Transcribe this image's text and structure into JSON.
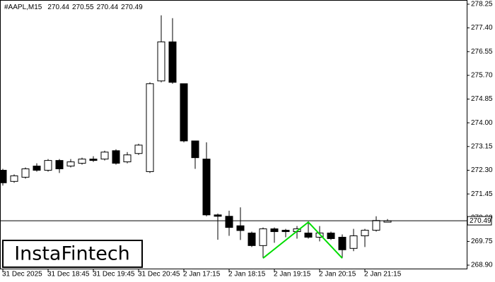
{
  "chart_data": {
    "type": "candlestick",
    "symbol": "#AAPL,M15",
    "watermark": "InstaFintech",
    "categories": [
      "31 Dec 2025",
      null,
      null,
      null,
      "31 Dec 18:45",
      null,
      null,
      null,
      "31 Dec 19:45",
      null,
      null,
      null,
      "31 Dec 20:45",
      null,
      null,
      null,
      "2 Jan 17:15",
      null,
      null,
      null,
      "2 Jan 18:15",
      null,
      null,
      null,
      "2 Jan 19:15",
      null,
      null,
      null,
      "2 Jan 20:15",
      null,
      null,
      null,
      "2 Jan 21:15",
      null,
      null
    ],
    "open": [
      272.3,
      271.9,
      272.05,
      272.45,
      272.3,
      272.65,
      272.45,
      272.55,
      272.7,
      272.7,
      273.0,
      272.6,
      272.9,
      272.25,
      275.5,
      276.9,
      275.4,
      273.35,
      272.7,
      270.7,
      270.65,
      270.31,
      270.05,
      269.6,
      270.2,
      270.15,
      270.1,
      270.05,
      269.9,
      270.05,
      269.9,
      269.5,
      269.95,
      270.15,
      270.44
    ],
    "high": [
      272.35,
      272.15,
      272.4,
      272.55,
      272.7,
      272.7,
      272.7,
      272.75,
      272.8,
      273.0,
      273.05,
      272.95,
      273.25,
      275.45,
      277.85,
      277.75,
      275.4,
      273.35,
      273.3,
      270.75,
      270.85,
      270.97,
      270.1,
      270.25,
      270.25,
      270.2,
      270.3,
      270.45,
      270.3,
      270.1,
      270.0,
      270.2,
      270.2,
      270.65,
      270.55
    ],
    "low": [
      271.75,
      271.85,
      272.0,
      272.25,
      272.25,
      272.2,
      272.4,
      272.5,
      272.6,
      272.65,
      272.5,
      272.55,
      272.85,
      272.2,
      275.45,
      275.4,
      273.3,
      272.35,
      270.65,
      269.81,
      269.95,
      269.8,
      269.55,
      269.15,
      269.7,
      269.9,
      269.85,
      269.85,
      269.75,
      269.8,
      269.15,
      269.4,
      269.55,
      270.1,
      270.44
    ],
    "close": [
      271.85,
      272.1,
      272.35,
      272.3,
      272.65,
      272.35,
      272.6,
      272.7,
      272.65,
      272.95,
      272.55,
      272.85,
      273.2,
      275.4,
      276.9,
      275.45,
      273.35,
      272.75,
      270.7,
      270.65,
      270.25,
      270.14,
      269.6,
      270.2,
      270.1,
      270.1,
      270.2,
      269.9,
      270.05,
      269.85,
      269.45,
      269.95,
      270.15,
      270.5,
      270.49
    ],
    "pattern": {
      "color": "#00dd00",
      "x": [
        23,
        27,
        30
      ],
      "values": [
        269.15,
        270.44,
        269.15
      ]
    },
    "ylim": [
      268.75,
      278.4
    ],
    "yticks": [
      {
        "value": 278.25,
        "label": "278.25"
      },
      {
        "value": 277.4,
        "label": "277.40"
      },
      {
        "value": 276.55,
        "label": "276.55"
      },
      {
        "value": 275.7,
        "label": "275.70"
      },
      {
        "value": 274.85,
        "label": "274.85"
      },
      {
        "value": 274,
        "label": "274.00"
      },
      {
        "value": 273.15,
        "label": "273.15"
      },
      {
        "value": 272.3,
        "label": "272.30"
      },
      {
        "value": 271.45,
        "label": "271.45"
      },
      {
        "value": 270.6,
        "label": "270.60"
      },
      {
        "value": 269.75,
        "label": "269.75"
      },
      {
        "value": 268.9,
        "label": "268.90"
      }
    ]
  }
}
